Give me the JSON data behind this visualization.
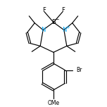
{
  "bg_color": "#ffffff",
  "bond_color": "#000000",
  "N_color": "#00aaff",
  "B_label": "B",
  "B_charge": "−",
  "N_charge": "+",
  "F_label": "F",
  "Br_label": "Br",
  "O_label": "OMe",
  "lw": 0.85
}
